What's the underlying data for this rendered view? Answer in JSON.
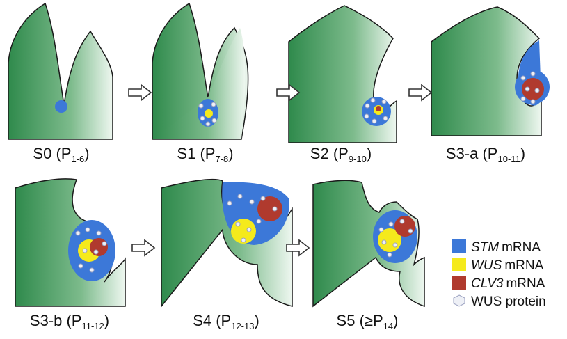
{
  "stages": [
    {
      "name": "S0 (P",
      "sub": "1-6",
      "close": ")"
    },
    {
      "name": "S1 (P",
      "sub": "7-8",
      "close": ")"
    },
    {
      "name": "S2 (P",
      "sub": "9-10",
      "close": ")"
    },
    {
      "name": "S3-a (P",
      "sub": "10-11",
      "close": ")"
    },
    {
      "name": "S3-b (P",
      "sub": "11-12",
      "close": ")"
    },
    {
      "name": "S4 (P",
      "sub": "12-13",
      "close": ")"
    },
    {
      "name": "S5 (≥P",
      "sub": "14",
      "close": ")"
    }
  ],
  "legend": [
    {
      "gene": "STM",
      "label": "mRNA"
    },
    {
      "gene": "WUS",
      "label": "mRNA"
    },
    {
      "gene": "CLV3",
      "label": "mRNA"
    },
    {
      "label": "WUS protein"
    }
  ]
}
